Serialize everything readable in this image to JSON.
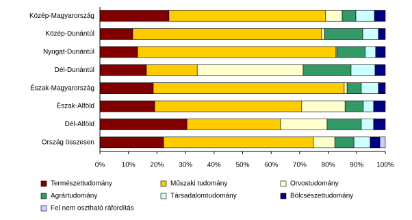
{
  "chart_data": {
    "type": "stacked-bar-horizontal",
    "categories": [
      "Közép-Magyarország",
      "Közép-Dunántúl",
      "Nyugat-Dunántúl",
      "Dél-Dunántúl",
      "Észak-Magyarország",
      "Észak-Alföld",
      "Dél-Alföld",
      "Ország összesen"
    ],
    "series": [
      {
        "name": "Természettudomány",
        "color": "#800000",
        "values": [
          24.2,
          11.5,
          13.2,
          16.3,
          18.7,
          19.2,
          30.5,
          22.3
        ]
      },
      {
        "name": "Műszaki tudomány",
        "color": "#ffcc00",
        "values": [
          54.9,
          66.2,
          69.5,
          17.8,
          66.9,
          51.5,
          32.8,
          52.5
        ]
      },
      {
        "name": "Orvostudomány",
        "color": "#ffffcc",
        "values": [
          5.8,
          1.0,
          0.3,
          37.1,
          1.0,
          15.2,
          16.3,
          7.5
        ]
      },
      {
        "name": "Agrártudomány",
        "color": "#339966",
        "values": [
          4.8,
          13.4,
          10.0,
          16.8,
          5.0,
          6.4,
          12.0,
          6.7
        ]
      },
      {
        "name": "Társadalomtudomány",
        "color": "#ccffff",
        "values": [
          6.5,
          5.5,
          3.6,
          8.4,
          6.0,
          3.6,
          4.3,
          5.7
        ]
      },
      {
        "name": "Bölcsészettudomány",
        "color": "#000080",
        "values": [
          3.8,
          2.4,
          3.4,
          3.6,
          2.4,
          4.1,
          4.1,
          3.4
        ]
      },
      {
        "name": "Fel nem osztható ráfordítás",
        "color": "#ccccff",
        "values": [
          0,
          0,
          0,
          0,
          0,
          0,
          0,
          1.9
        ]
      }
    ],
    "xlim": [
      0,
      100
    ],
    "xticks": [
      {
        "value": 0,
        "label": "0%"
      },
      {
        "value": 10,
        "label": "10%"
      },
      {
        "value": 20,
        "label": "20%"
      },
      {
        "value": 30,
        "label": "30%"
      },
      {
        "value": 40,
        "label": "40%"
      },
      {
        "value": 50,
        "label": "50%"
      },
      {
        "value": 60,
        "label": "60%"
      },
      {
        "value": 70,
        "label": "70%"
      },
      {
        "value": 80,
        "label": "80%"
      },
      {
        "value": 90,
        "label": "90%"
      },
      {
        "value": 100,
        "label": "100%"
      }
    ],
    "grid": false
  }
}
